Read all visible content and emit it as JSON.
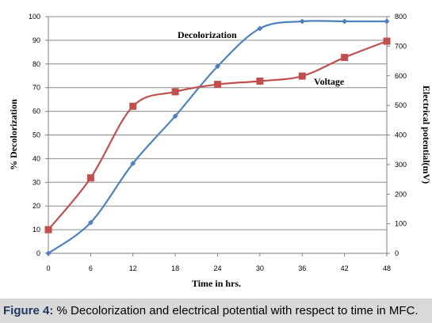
{
  "chart_data": {
    "type": "line",
    "x": [
      0,
      6,
      12,
      18,
      24,
      30,
      36,
      42,
      48
    ],
    "xlabel": "Time in hrs.",
    "ylabel_left": "% Decolorization",
    "ylabel_right": "Electrical potential(mV)",
    "ylim_left": [
      0,
      100
    ],
    "ylim_right": [
      0,
      800
    ],
    "yticks_left": [
      0,
      10,
      20,
      30,
      40,
      50,
      60,
      70,
      80,
      90,
      100
    ],
    "yticks_right": [
      0,
      100,
      200,
      300,
      400,
      500,
      600,
      700,
      800
    ],
    "grid": true,
    "series": [
      {
        "name": "Decolorization",
        "axis": "left",
        "color": "#4f81bd",
        "marker": "diamond",
        "values": [
          0,
          13,
          38,
          58,
          79,
          95,
          98,
          98,
          98
        ]
      },
      {
        "name": "Voltage",
        "axis": "right",
        "color": "#c0504d",
        "marker": "square",
        "values": [
          80,
          255,
          497,
          546,
          571,
          582,
          599,
          662,
          717
        ]
      }
    ]
  },
  "caption": {
    "label": "Figure 4:",
    "text": " % Decolorization and electrical potential with respect to time in MFC."
  }
}
